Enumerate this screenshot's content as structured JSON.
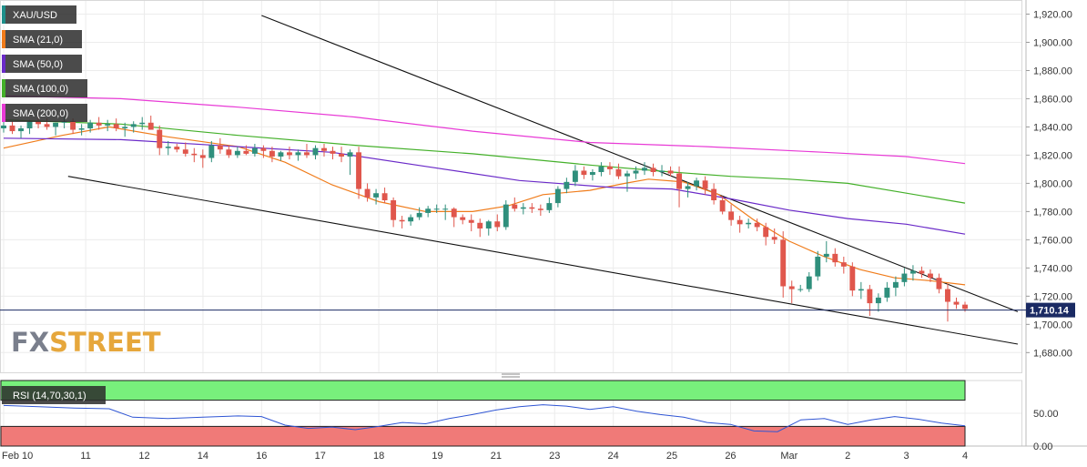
{
  "chart_data": {
    "type": "candlestick",
    "symbol": "XAU/USD",
    "last_price": 1710.14,
    "last_price_label": "1,710.14",
    "price_axis": {
      "range": [
        1666,
        1930
      ],
      "ticks": [
        1680,
        1700,
        1720,
        1740,
        1760,
        1780,
        1800,
        1820,
        1840,
        1860,
        1880,
        1900,
        1920
      ],
      "tick_labels": [
        "1,680.00",
        "1,700.00",
        "1,720.00",
        "1,740.00",
        "1,760.00",
        "1,780.00",
        "1,800.00",
        "1,820.00",
        "1,840.00",
        "1,860.00",
        "1,880.00",
        "1,900.00",
        "1,920.00"
      ]
    },
    "x_axis": {
      "labels": [
        "Feb 10",
        "11",
        "12",
        "14",
        "16",
        "17",
        "18",
        "19",
        "21",
        "23",
        "24",
        "25",
        "26",
        "Mar",
        "2",
        "3",
        "4"
      ],
      "positions": [
        0,
        14,
        24,
        34,
        44,
        54,
        64,
        74,
        84,
        94,
        104,
        114,
        124,
        134,
        144,
        154,
        164
      ]
    },
    "candles": [
      [
        1839,
        1846,
        1836,
        1841
      ],
      [
        1841,
        1844,
        1835,
        1837
      ],
      [
        1837,
        1841,
        1832,
        1839
      ],
      [
        1839,
        1845,
        1835,
        1844
      ],
      [
        1844,
        1848,
        1839,
        1842
      ],
      [
        1842,
        1846,
        1838,
        1840
      ],
      [
        1840,
        1843,
        1834,
        1843
      ],
      [
        1843,
        1847,
        1839,
        1844
      ],
      [
        1844,
        1846,
        1835,
        1838
      ],
      [
        1838,
        1842,
        1834,
        1839
      ],
      [
        1839,
        1845,
        1836,
        1843
      ],
      [
        1843,
        1847,
        1838,
        1841
      ],
      [
        1841,
        1845,
        1837,
        1842
      ],
      [
        1842,
        1846,
        1837,
        1839
      ],
      [
        1839,
        1843,
        1833,
        1840
      ],
      [
        1840,
        1844,
        1836,
        1842
      ],
      [
        1842,
        1847,
        1838,
        1843
      ],
      [
        1843,
        1848,
        1838,
        1838
      ],
      [
        1838,
        1841,
        1820,
        1825
      ],
      [
        1825,
        1830,
        1820,
        1826
      ],
      [
        1826,
        1828,
        1822,
        1824
      ],
      [
        1824,
        1829,
        1819,
        1821
      ],
      [
        1821,
        1825,
        1815,
        1820
      ],
      [
        1820,
        1824,
        1811,
        1818
      ],
      [
        1818,
        1830,
        1815,
        1827
      ],
      [
        1827,
        1832,
        1821,
        1824
      ],
      [
        1824,
        1827,
        1818,
        1820
      ],
      [
        1820,
        1826,
        1818,
        1823
      ],
      [
        1823,
        1827,
        1820,
        1821
      ],
      [
        1821,
        1828,
        1819,
        1825
      ],
      [
        1825,
        1827,
        1818,
        1823
      ],
      [
        1823,
        1826,
        1815,
        1819
      ],
      [
        1819,
        1823,
        1816,
        1822
      ],
      [
        1822,
        1826,
        1817,
        1820
      ],
      [
        1820,
        1824,
        1816,
        1822
      ],
      [
        1822,
        1828,
        1818,
        1820
      ],
      [
        1820,
        1827,
        1817,
        1825
      ],
      [
        1825,
        1828,
        1819,
        1823
      ],
      [
        1823,
        1826,
        1817,
        1821
      ],
      [
        1821,
        1826,
        1815,
        1819
      ],
      [
        1819,
        1824,
        1806,
        1822
      ],
      [
        1822,
        1826,
        1789,
        1796
      ],
      [
        1796,
        1800,
        1787,
        1790
      ],
      [
        1790,
        1796,
        1785,
        1793
      ],
      [
        1793,
        1797,
        1786,
        1788
      ],
      [
        1788,
        1790,
        1769,
        1774
      ],
      [
        1774,
        1777,
        1768,
        1773
      ],
      [
        1773,
        1778,
        1770,
        1776
      ],
      [
        1776,
        1783,
        1774,
        1779
      ],
      [
        1779,
        1784,
        1776,
        1782
      ],
      [
        1782,
        1785,
        1779,
        1782
      ],
      [
        1782,
        1785,
        1774,
        1782
      ],
      [
        1782,
        1783,
        1769,
        1776
      ],
      [
        1776,
        1778,
        1771,
        1774
      ],
      [
        1774,
        1778,
        1766,
        1772
      ],
      [
        1772,
        1775,
        1762,
        1768
      ],
      [
        1768,
        1774,
        1763,
        1773
      ],
      [
        1773,
        1778,
        1766,
        1769
      ],
      [
        1769,
        1788,
        1767,
        1785
      ],
      [
        1785,
        1790,
        1780,
        1782
      ],
      [
        1782,
        1786,
        1778,
        1783
      ],
      [
        1783,
        1786,
        1779,
        1782
      ],
      [
        1782,
        1785,
        1777,
        1781
      ],
      [
        1781,
        1790,
        1779,
        1786
      ],
      [
        1786,
        1798,
        1783,
        1796
      ],
      [
        1796,
        1804,
        1793,
        1801
      ],
      [
        1801,
        1813,
        1798,
        1809
      ],
      [
        1809,
        1812,
        1803,
        1806
      ],
      [
        1806,
        1810,
        1802,
        1808
      ],
      [
        1808,
        1815,
        1805,
        1812
      ],
      [
        1812,
        1815,
        1806,
        1810
      ],
      [
        1810,
        1814,
        1803,
        1805
      ],
      [
        1805,
        1809,
        1794,
        1807
      ],
      [
        1807,
        1812,
        1803,
        1809
      ],
      [
        1809,
        1815,
        1806,
        1811
      ],
      [
        1811,
        1814,
        1805,
        1808
      ],
      [
        1808,
        1813,
        1805,
        1809
      ],
      [
        1809,
        1812,
        1805,
        1807
      ],
      [
        1807,
        1812,
        1783,
        1796
      ],
      [
        1796,
        1801,
        1790,
        1798
      ],
      [
        1798,
        1804,
        1795,
        1802
      ],
      [
        1802,
        1805,
        1792,
        1796
      ],
      [
        1796,
        1800,
        1785,
        1788
      ],
      [
        1788,
        1791,
        1778,
        1780
      ],
      [
        1780,
        1785,
        1770,
        1774
      ],
      [
        1774,
        1777,
        1765,
        1771
      ],
      [
        1771,
        1775,
        1768,
        1772
      ],
      [
        1772,
        1775,
        1766,
        1769
      ],
      [
        1769,
        1772,
        1756,
        1762
      ],
      [
        1762,
        1768,
        1757,
        1760
      ],
      [
        1760,
        1766,
        1719,
        1727
      ],
      [
        1727,
        1731,
        1715,
        1725
      ],
      [
        1725,
        1728,
        1723,
        1725
      ],
      [
        1725,
        1737,
        1723,
        1734
      ],
      [
        1734,
        1752,
        1731,
        1748
      ],
      [
        1748,
        1759,
        1744,
        1750
      ],
      [
        1750,
        1754,
        1741,
        1744
      ],
      [
        1744,
        1748,
        1736,
        1741
      ],
      [
        1741,
        1744,
        1720,
        1724
      ],
      [
        1724,
        1730,
        1718,
        1725
      ],
      [
        1725,
        1728,
        1706,
        1715
      ],
      [
        1715,
        1722,
        1709,
        1719
      ],
      [
        1719,
        1730,
        1716,
        1726
      ],
      [
        1726,
        1734,
        1720,
        1730
      ],
      [
        1730,
        1740,
        1727,
        1736
      ],
      [
        1736,
        1742,
        1731,
        1738
      ],
      [
        1738,
        1741,
        1733,
        1736
      ],
      [
        1736,
        1739,
        1730,
        1733
      ],
      [
        1733,
        1736,
        1722,
        1725
      ],
      [
        1725,
        1729,
        1702,
        1716
      ],
      [
        1716,
        1719,
        1711,
        1714
      ],
      [
        1714,
        1716,
        1709,
        1711
      ]
    ],
    "trendlines": [
      {
        "from": [
          44,
          1919
        ],
        "to": [
          173,
          1709
        ]
      },
      {
        "from": [
          11,
          1805
        ],
        "to": [
          173,
          1686
        ]
      }
    ],
    "series": [
      {
        "name": "SMA (21,0)",
        "color": "#f07c1b",
        "points": [
          [
            0,
            1825
          ],
          [
            10,
            1834
          ],
          [
            18,
            1840
          ],
          [
            28,
            1833
          ],
          [
            40,
            1826
          ],
          [
            48,
            1815
          ],
          [
            56,
            1799
          ],
          [
            64,
            1787
          ],
          [
            72,
            1780
          ],
          [
            80,
            1780
          ],
          [
            86,
            1784
          ],
          [
            92,
            1792
          ],
          [
            100,
            1795
          ],
          [
            106,
            1800
          ],
          [
            110,
            1803
          ],
          [
            116,
            1801
          ],
          [
            122,
            1792
          ],
          [
            128,
            1774
          ],
          [
            134,
            1759
          ],
          [
            140,
            1748
          ],
          [
            146,
            1739
          ],
          [
            152,
            1733
          ],
          [
            158,
            1731
          ],
          [
            164,
            1728
          ]
        ]
      },
      {
        "name": "SMA (50,0)",
        "color": "#6a2ac8",
        "points": [
          [
            0,
            1832
          ],
          [
            20,
            1831
          ],
          [
            40,
            1826
          ],
          [
            56,
            1822
          ],
          [
            72,
            1812
          ],
          [
            88,
            1802
          ],
          [
            104,
            1797
          ],
          [
            114,
            1796
          ],
          [
            124,
            1789
          ],
          [
            134,
            1781
          ],
          [
            144,
            1775
          ],
          [
            154,
            1771
          ],
          [
            164,
            1764
          ]
        ]
      },
      {
        "name": "SMA (100,0)",
        "color": "#44b02a",
        "points": [
          [
            0,
            1845
          ],
          [
            20,
            1842
          ],
          [
            40,
            1834
          ],
          [
            60,
            1827
          ],
          [
            80,
            1821
          ],
          [
            100,
            1813
          ],
          [
            114,
            1808
          ],
          [
            124,
            1805
          ],
          [
            134,
            1803
          ],
          [
            144,
            1800
          ],
          [
            154,
            1793
          ],
          [
            164,
            1786
          ]
        ]
      },
      {
        "name": "SMA (200,0)",
        "color": "#e83ad6",
        "points": [
          [
            0,
            1862
          ],
          [
            20,
            1860
          ],
          [
            40,
            1854
          ],
          [
            60,
            1847
          ],
          [
            80,
            1837
          ],
          [
            100,
            1829
          ],
          [
            120,
            1826
          ],
          [
            140,
            1822
          ],
          [
            154,
            1819
          ],
          [
            164,
            1814
          ]
        ]
      }
    ],
    "rsi": {
      "name": "RSI (14,70,30,1)",
      "range": [
        0,
        100
      ],
      "overbought": 70,
      "oversold": 30,
      "ticks": [
        0,
        50
      ],
      "tick_labels": [
        "0.00",
        "50.00"
      ],
      "points": [
        [
          0,
          62
        ],
        [
          6,
          60
        ],
        [
          12,
          58
        ],
        [
          18,
          57
        ],
        [
          22,
          44
        ],
        [
          28,
          42
        ],
        [
          34,
          44
        ],
        [
          40,
          46
        ],
        [
          44,
          45
        ],
        [
          48,
          32
        ],
        [
          52,
          27
        ],
        [
          56,
          29
        ],
        [
          60,
          25
        ],
        [
          64,
          30
        ],
        [
          68,
          36
        ],
        [
          72,
          34
        ],
        [
          76,
          42
        ],
        [
          80,
          48
        ],
        [
          84,
          55
        ],
        [
          88,
          60
        ],
        [
          92,
          63
        ],
        [
          96,
          61
        ],
        [
          100,
          56
        ],
        [
          104,
          60
        ],
        [
          108,
          53
        ],
        [
          112,
          48
        ],
        [
          116,
          44
        ],
        [
          120,
          36
        ],
        [
          124,
          33
        ],
        [
          128,
          23
        ],
        [
          132,
          22
        ],
        [
          136,
          40
        ],
        [
          140,
          42
        ],
        [
          144,
          33
        ],
        [
          148,
          40
        ],
        [
          152,
          45
        ],
        [
          156,
          41
        ],
        [
          160,
          35
        ],
        [
          164,
          31
        ]
      ]
    },
    "legend": [
      {
        "label": "XAU/USD",
        "color": "#1e8f8a"
      },
      {
        "label": "SMA (21,0)",
        "color": "#f07c1b"
      },
      {
        "label": "SMA (50,0)",
        "color": "#6a2ac8"
      },
      {
        "label": "SMA (100,0)",
        "color": "#44b02a"
      },
      {
        "label": "SMA (200,0)",
        "color": "#e83ad6"
      }
    ],
    "colors": {
      "bullish": "#2f8f7c",
      "bearish": "#e0564c",
      "trendline": "#111111",
      "last_price_line": "#1a2a63",
      "rsi_line": "#2f55d4",
      "rsi_overbought_zone": "#78f07c",
      "rsi_oversold_zone": "#f07a78"
    },
    "watermark": {
      "left": "FX",
      "right": "STREET"
    }
  }
}
